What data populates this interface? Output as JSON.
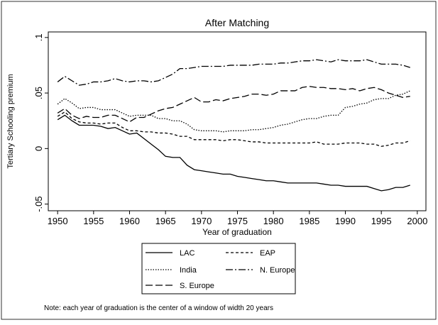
{
  "chart_data": {
    "type": "line",
    "title": "After Matching",
    "xlabel": "Year of graduation",
    "ylabel": "Tertiary Schooling premium",
    "note": "Note: each year of graduation is the center of a window of width 20 years",
    "x": [
      1950,
      1951,
      1952,
      1953,
      1954,
      1955,
      1956,
      1957,
      1958,
      1959,
      1960,
      1961,
      1962,
      1963,
      1964,
      1965,
      1966,
      1967,
      1968,
      1969,
      1970,
      1971,
      1972,
      1973,
      1974,
      1975,
      1976,
      1977,
      1978,
      1979,
      1980,
      1981,
      1982,
      1983,
      1984,
      1985,
      1986,
      1987,
      1988,
      1989,
      1990,
      1991,
      1992,
      1993,
      1994,
      1995,
      1996,
      1997,
      1998,
      1999
    ],
    "xlim": [
      1948.7,
      2001.2
    ],
    "xticks": [
      1950,
      1955,
      1960,
      1965,
      1970,
      1975,
      1980,
      1985,
      1990,
      1995,
      2000
    ],
    "ylim": [
      -0.056,
      0.105
    ],
    "yticks": [
      {
        "value": -0.05,
        "label": "-.05"
      },
      0,
      {
        "value": 0.05,
        "label": ".05"
      },
      {
        "value": 0.1,
        "label": ".1"
      }
    ],
    "series": [
      {
        "name": "LAC",
        "color": "#000000",
        "dash": "none",
        "values": [
          0.026,
          0.03,
          0.025,
          0.021,
          0.021,
          0.021,
          0.02,
          0.018,
          0.019,
          0.016,
          0.013,
          0.014,
          0.009,
          0.004,
          -0.001,
          -0.007,
          -0.008,
          -0.008,
          -0.015,
          -0.019,
          -0.02,
          -0.021,
          -0.022,
          -0.023,
          -0.023,
          -0.025,
          -0.026,
          -0.027,
          -0.028,
          -0.029,
          -0.029,
          -0.03,
          -0.031,
          -0.031,
          -0.031,
          -0.031,
          -0.031,
          -0.032,
          -0.033,
          -0.033,
          -0.034,
          -0.034,
          -0.034,
          -0.034,
          -0.036,
          -0.038,
          -0.037,
          -0.035,
          -0.035,
          -0.033
        ]
      },
      {
        "name": "EAP",
        "color": "#000000",
        "dash": "4,3",
        "values": [
          0.029,
          0.033,
          0.027,
          0.024,
          0.023,
          0.023,
          0.022,
          0.023,
          0.023,
          0.019,
          0.016,
          0.016,
          0.015,
          0.015,
          0.014,
          0.014,
          0.013,
          0.011,
          0.011,
          0.008,
          0.008,
          0.008,
          0.008,
          0.007,
          0.008,
          0.008,
          0.007,
          0.006,
          0.006,
          0.005,
          0.005,
          0.005,
          0.005,
          0.005,
          0.005,
          0.005,
          0.006,
          0.004,
          0.004,
          0.004,
          0.005,
          0.005,
          0.005,
          0.004,
          0.004,
          0.002,
          0.003,
          0.005,
          0.005,
          0.007
        ]
      },
      {
        "name": "India",
        "color": "#000000",
        "dash": "1.5,2",
        "values": [
          0.04,
          0.045,
          0.041,
          0.036,
          0.037,
          0.037,
          0.035,
          0.035,
          0.035,
          0.032,
          0.029,
          0.03,
          0.03,
          0.03,
          0.027,
          0.027,
          0.025,
          0.025,
          0.022,
          0.017,
          0.016,
          0.016,
          0.016,
          0.015,
          0.016,
          0.016,
          0.016,
          0.017,
          0.017,
          0.018,
          0.019,
          0.021,
          0.022,
          0.024,
          0.026,
          0.027,
          0.027,
          0.029,
          0.03,
          0.03,
          0.037,
          0.038,
          0.04,
          0.041,
          0.044,
          0.045,
          0.045,
          0.048,
          0.049,
          0.052
        ]
      },
      {
        "name": "N. Europe",
        "color": "#000000",
        "dash": "10,3,2,3",
        "values": [
          0.06,
          0.065,
          0.061,
          0.057,
          0.058,
          0.06,
          0.06,
          0.061,
          0.063,
          0.061,
          0.06,
          0.061,
          0.061,
          0.06,
          0.061,
          0.064,
          0.067,
          0.072,
          0.072,
          0.073,
          0.074,
          0.074,
          0.074,
          0.074,
          0.075,
          0.075,
          0.075,
          0.075,
          0.076,
          0.076,
          0.076,
          0.077,
          0.077,
          0.078,
          0.079,
          0.079,
          0.08,
          0.079,
          0.078,
          0.08,
          0.079,
          0.079,
          0.079,
          0.08,
          0.078,
          0.076,
          0.076,
          0.076,
          0.075,
          0.073
        ]
      },
      {
        "name": "S. Europe",
        "color": "#000000",
        "dash": "10,4",
        "values": [
          0.032,
          0.036,
          0.03,
          0.027,
          0.029,
          0.028,
          0.028,
          0.03,
          0.03,
          0.027,
          0.024,
          0.028,
          0.028,
          0.031,
          0.034,
          0.036,
          0.037,
          0.04,
          0.043,
          0.046,
          0.042,
          0.042,
          0.044,
          0.043,
          0.045,
          0.046,
          0.047,
          0.049,
          0.049,
          0.048,
          0.049,
          0.052,
          0.052,
          0.052,
          0.055,
          0.056,
          0.055,
          0.055,
          0.054,
          0.054,
          0.053,
          0.054,
          0.052,
          0.054,
          0.055,
          0.053,
          0.05,
          0.048,
          0.046,
          0.047
        ]
      }
    ]
  }
}
